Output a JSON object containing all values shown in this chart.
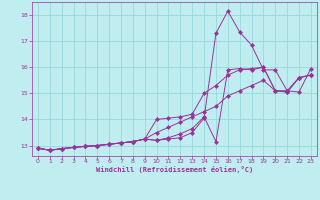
{
  "xlabel": "Windchill (Refroidissement éolien,°C)",
  "bg_color": "#c0eef0",
  "grid_color": "#98d8dc",
  "line_color": "#993399",
  "xlim": [
    -0.5,
    23.5
  ],
  "ylim": [
    12.6,
    18.5
  ],
  "xticks": [
    0,
    1,
    2,
    3,
    4,
    5,
    6,
    7,
    8,
    9,
    10,
    11,
    12,
    13,
    14,
    15,
    16,
    17,
    18,
    19,
    20,
    21,
    22,
    23
  ],
  "yticks": [
    13,
    14,
    15,
    16,
    17,
    18
  ],
  "series": [
    {
      "x": [
        0,
        1,
        2,
        3,
        4,
        5,
        6,
        7,
        8,
        9,
        10,
        11,
        12,
        13,
        14,
        15,
        16,
        17,
        18,
        19,
        20,
        21,
        22,
        23
      ],
      "y": [
        12.9,
        12.82,
        12.88,
        12.93,
        12.97,
        13.0,
        13.05,
        13.1,
        13.15,
        13.25,
        13.5,
        13.7,
        13.9,
        14.1,
        14.3,
        14.5,
        14.9,
        15.1,
        15.3,
        15.5,
        15.1,
        15.1,
        15.6,
        15.7
      ]
    },
    {
      "x": [
        0,
        1,
        2,
        3,
        4,
        5,
        6,
        7,
        8,
        9,
        10,
        11,
        12,
        13,
        14,
        15,
        16,
        17,
        18,
        19,
        20,
        21,
        22,
        23
      ],
      "y": [
        12.9,
        12.82,
        12.88,
        12.93,
        12.97,
        13.0,
        13.05,
        13.1,
        13.15,
        13.25,
        14.0,
        14.05,
        14.1,
        14.2,
        15.0,
        15.3,
        15.7,
        15.9,
        15.95,
        16.0,
        15.1,
        15.05,
        15.6,
        15.7
      ]
    },
    {
      "x": [
        0,
        1,
        2,
        3,
        4,
        5,
        6,
        7,
        8,
        9,
        10,
        11,
        12,
        13,
        14,
        15,
        16,
        17,
        18,
        19,
        20,
        21,
        22,
        23
      ],
      "y": [
        12.9,
        12.82,
        12.88,
        12.93,
        12.97,
        13.0,
        13.05,
        13.1,
        13.15,
        13.25,
        13.2,
        13.3,
        13.45,
        13.65,
        14.1,
        13.15,
        15.9,
        15.95,
        15.9,
        16.0,
        15.1,
        15.05,
        15.6,
        15.7
      ]
    },
    {
      "x": [
        0,
        1,
        2,
        3,
        4,
        5,
        6,
        7,
        8,
        9,
        10,
        11,
        12,
        13,
        14,
        15,
        16,
        17,
        18,
        19,
        20,
        21,
        22,
        23
      ],
      "y": [
        12.9,
        12.82,
        12.88,
        12.93,
        12.97,
        13.0,
        13.05,
        13.1,
        13.15,
        13.25,
        13.2,
        13.25,
        13.3,
        13.5,
        14.05,
        17.3,
        18.15,
        17.35,
        16.85,
        15.9,
        15.9,
        15.1,
        15.05,
        15.95
      ]
    }
  ]
}
